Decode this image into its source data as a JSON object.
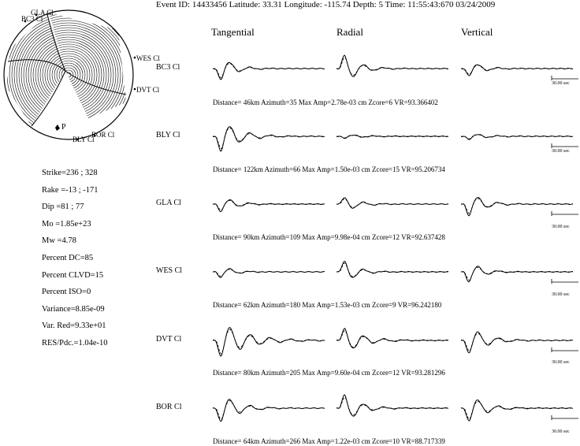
{
  "header": "Event ID: 14433456  Latitude: 33.31  Longitude: -115.74  Depth: 5  Time: 11:55:43:670 03/24/2009",
  "columns": [
    "Tangential",
    "Radial",
    "Vertical"
  ],
  "beachball": {
    "stations": [
      "GLA Cl",
      "BC3 Cl",
      "WES Cl",
      "DVT Cl",
      "BOR Cl",
      "BLY Cl"
    ],
    "p_label": "P"
  },
  "parameters": [
    "Strike=236 ; 328",
    "Rake =-13 ; -171",
    "Dip  =81 ; 77",
    "Mo   =1.85e+23",
    "Mw   =4.78",
    "Percent DC=85",
    "Percent CLVD=15",
    "Percent ISO=0",
    "Variance=8.85e-09",
    "Var. Red=9.33e+01",
    "RES/Pdc.=1.04e-10"
  ],
  "scale_label": "30.00 sec",
  "chart_data": {
    "type": "line",
    "title": "Event ID: 14433456  Latitude: 33.31  Longitude: -115.74  Depth: 5  Time: 11:55:43:670 03/24/2009",
    "components": [
      "Tangential",
      "Radial",
      "Vertical"
    ],
    "series": [
      "observed (solid)",
      "synthetic (dashed)"
    ],
    "stations": [
      {
        "name": "BC3 Cl",
        "info": "Distance= 46km Azimuth=35 Max Amp=2.78e-03 cm  Zcore=6   VR=93.366402",
        "distance_km": 46,
        "azimuth": 35,
        "max_amp_cm": 0.00278,
        "zcore": 6,
        "vr": 93.366402,
        "amplitudes": [
          0.85,
          1.0,
          0.55
        ],
        "decay": [
          1.4,
          1.3,
          1.4
        ]
      },
      {
        "name": "BLY Cl",
        "info": "Distance= 122km Azimuth=66 Max Amp=1.50e-03 cm  Zcore=15   VR=95.206734",
        "distance_km": 122,
        "azimuth": 66,
        "max_amp_cm": 0.0015,
        "zcore": 15,
        "vr": 95.206734,
        "amplitudes": [
          1.0,
          0.12,
          0.2
        ],
        "decay": [
          1.0,
          0.9,
          1.0
        ]
      },
      {
        "name": "GLA Cl",
        "info": "Distance= 90km Azimuth=109 Max Amp=9.98e-04 cm  Zcore=12   VR=92.637428",
        "distance_km": 90,
        "azimuth": 109,
        "max_amp_cm": 0.000998,
        "zcore": 12,
        "vr": 92.637428,
        "amplitudes": [
          0.55,
          0.5,
          0.85
        ],
        "decay": [
          1.3,
          1.3,
          1.3
        ]
      },
      {
        "name": "WES Cl",
        "info": "Distance= 62km Azimuth=180 Max Amp=1.53e-03 cm  Zcore=9   VR=96.242180",
        "distance_km": 62,
        "azimuth": 180,
        "max_amp_cm": 0.00153,
        "zcore": 9,
        "vr": 96.24218,
        "amplitudes": [
          0.45,
          0.85,
          0.8
        ],
        "decay": [
          1.5,
          1.5,
          1.5
        ]
      },
      {
        "name": "DVT Cl",
        "info": "Distance= 80km Azimuth=205 Max Amp=9.60e-04 cm  Zcore=12   VR=93.281296",
        "distance_km": 80,
        "azimuth": 205,
        "max_amp_cm": 0.00096,
        "zcore": 12,
        "vr": 93.281296,
        "amplitudes": [
          1.0,
          0.8,
          0.9
        ],
        "decay": [
          0.7,
          1.0,
          1.1
        ]
      },
      {
        "name": "BOR Cl",
        "info": "Distance= 64km Azimuth=266 Max Amp=1.22e-03 cm  Zcore=10   VR=88.717339",
        "distance_km": 64,
        "azimuth": 266,
        "max_amp_cm": 0.00122,
        "zcore": 10,
        "vr": 88.717339,
        "amplitudes": [
          0.95,
          0.95,
          0.95
        ],
        "decay": [
          1.1,
          1.2,
          1.2
        ]
      }
    ]
  }
}
